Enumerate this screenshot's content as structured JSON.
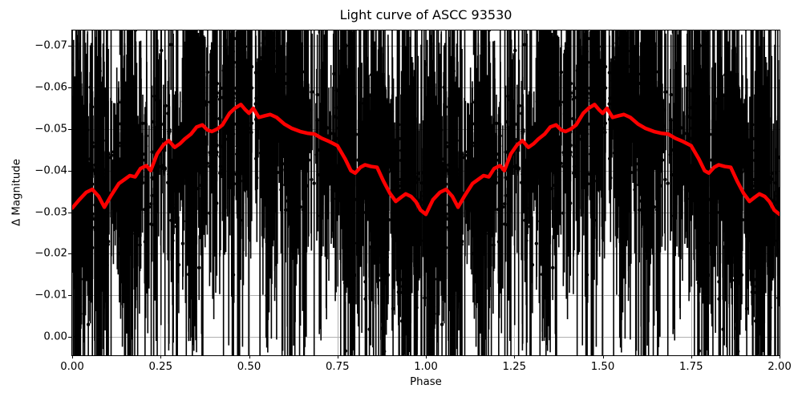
{
  "chart_data": {
    "type": "scatter",
    "title": "Light curve of ASCC 93530",
    "xlabel": "Phase",
    "ylabel": "Δ Magnitude",
    "xlim": [
      0.0,
      2.0
    ],
    "ylim_top": -0.0737,
    "ylim_bottom": 0.0044,
    "y_axis_inverted": true,
    "grid": true,
    "grid_color": "#b0b0b0",
    "background_color": "#ffffff",
    "x_tick_values": [
      0.0,
      0.25,
      0.5,
      0.75,
      1.0,
      1.25,
      1.5,
      1.75,
      2.0
    ],
    "x_tick_labels": [
      "0.00",
      "0.25",
      "0.50",
      "0.75",
      "1.00",
      "1.25",
      "1.50",
      "1.75",
      "2.00"
    ],
    "y_tick_values": [
      -0.07,
      -0.06,
      -0.05,
      -0.04,
      -0.03,
      -0.02,
      -0.01,
      0.0
    ],
    "y_tick_labels": [
      "−0.07",
      "−0.06",
      "−0.05",
      "−0.04",
      "−0.03",
      "−0.02",
      "−0.01",
      "0.00"
    ],
    "mean_curve": {
      "name": "phase-binned mean light curve",
      "color": "#ff0000",
      "linewidth": 4.5,
      "plotted_twice": true,
      "phase": [
        0.0,
        0.02,
        0.04,
        0.057,
        0.075,
        0.091,
        0.11,
        0.132,
        0.15,
        0.163,
        0.178,
        0.193,
        0.21,
        0.222,
        0.24,
        0.258,
        0.273,
        0.29,
        0.305,
        0.318,
        0.336,
        0.352,
        0.368,
        0.382,
        0.395,
        0.41,
        0.425,
        0.445,
        0.46,
        0.477,
        0.49,
        0.5,
        0.512,
        0.528,
        0.545,
        0.56,
        0.578,
        0.6,
        0.62,
        0.645,
        0.665,
        0.685,
        0.705,
        0.727,
        0.75,
        0.772,
        0.788,
        0.8,
        0.815,
        0.828,
        0.845,
        0.862,
        0.88,
        0.898,
        0.915,
        0.93,
        0.943,
        0.958,
        0.972,
        0.985,
        1.0
      ],
      "mag": [
        -0.031,
        -0.033,
        -0.0348,
        -0.0355,
        -0.0338,
        -0.0312,
        -0.034,
        -0.0369,
        -0.038,
        -0.0388,
        -0.0385,
        -0.0405,
        -0.0412,
        -0.04,
        -0.044,
        -0.0462,
        -0.0472,
        -0.0456,
        -0.0465,
        -0.0476,
        -0.0488,
        -0.0505,
        -0.051,
        -0.0498,
        -0.0494,
        -0.05,
        -0.051,
        -0.0538,
        -0.055,
        -0.0559,
        -0.0546,
        -0.0538,
        -0.055,
        -0.0528,
        -0.0532,
        -0.0535,
        -0.0528,
        -0.0512,
        -0.0502,
        -0.0494,
        -0.049,
        -0.0488,
        -0.0478,
        -0.047,
        -0.046,
        -0.0428,
        -0.04,
        -0.0394,
        -0.0408,
        -0.0414,
        -0.041,
        -0.0408,
        -0.0375,
        -0.0346,
        -0.0326,
        -0.0336,
        -0.0344,
        -0.0338,
        -0.0325,
        -0.0305,
        -0.0295
      ]
    },
    "scatter_model": {
      "name": "photometric observations with error bars",
      "color": "#000000",
      "marker_radius": 2.2,
      "errorbar_linewidth": 1.6,
      "errorbar_caps": false,
      "plotted_twice": true,
      "n_points": 1500,
      "noise_sigma": 0.0095,
      "outlier_fraction": 0.08,
      "outlier_sigma": 0.02,
      "err_base": 0.006,
      "err_sigma": 0.011,
      "err_tail_fraction": 0.18,
      "err_tail_max": 0.035,
      "err_long_fraction": 0.05,
      "err_long_extra": 0.05,
      "cluster_fraction": 0.5,
      "cluster_spread": 0.013,
      "cluster_phases": [
        0.075,
        0.16,
        0.345,
        0.47,
        0.555,
        0.625,
        0.78,
        0.875,
        0.945,
        0.02
      ],
      "seed": 42
    }
  }
}
